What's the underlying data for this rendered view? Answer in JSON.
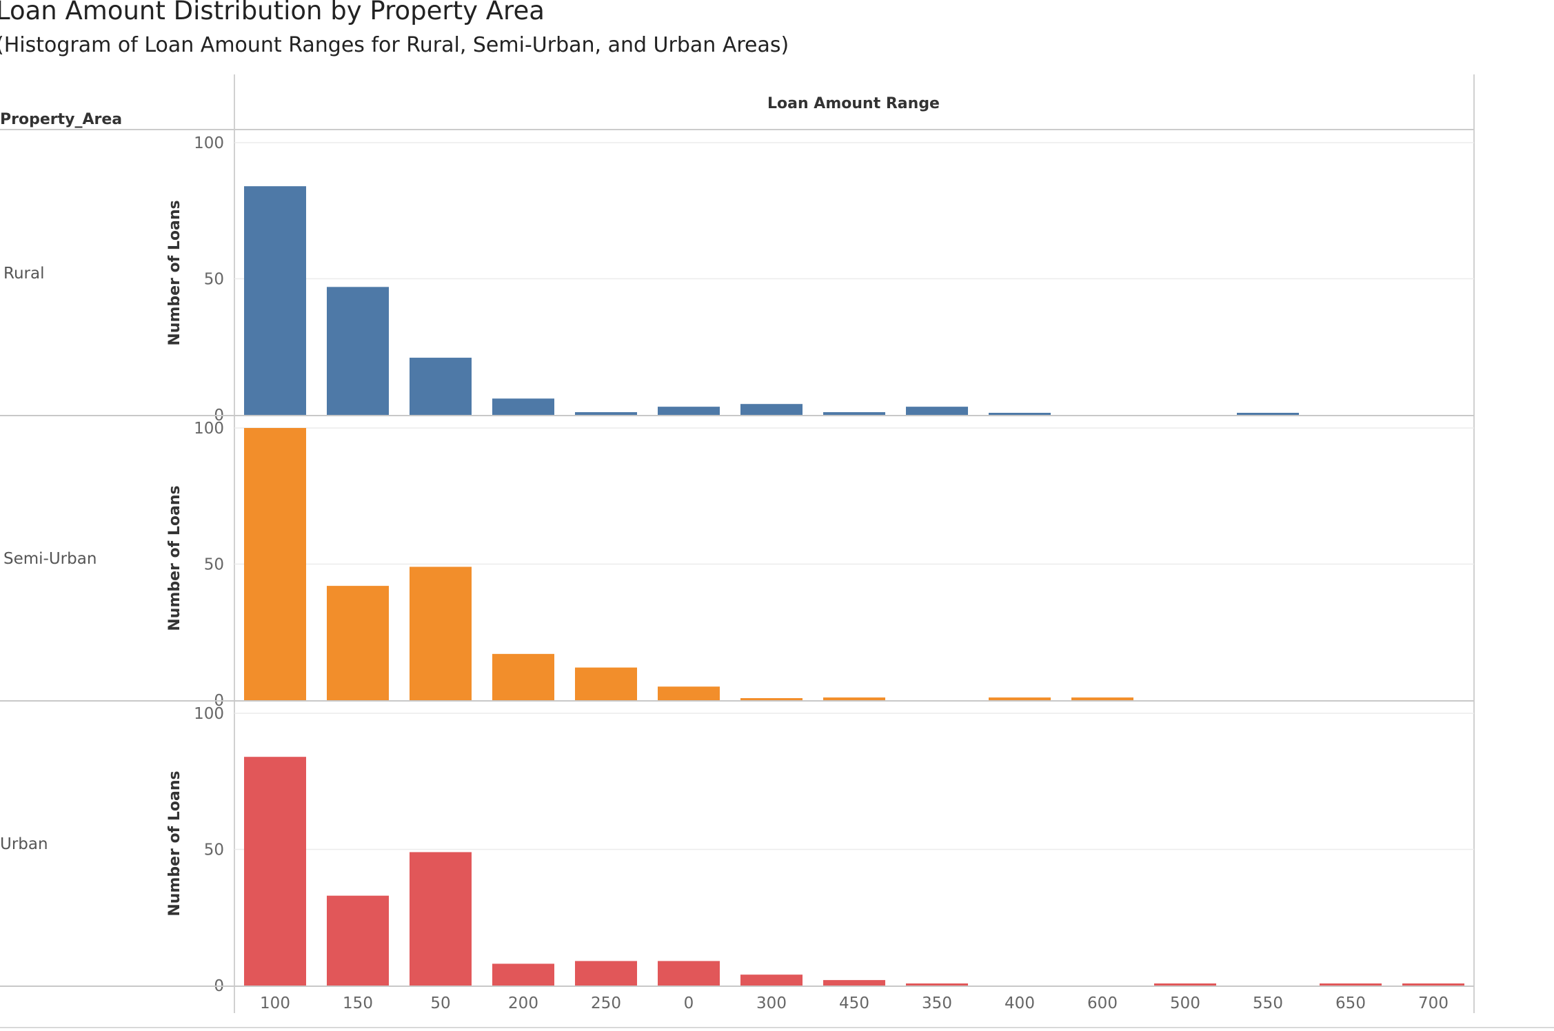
{
  "title": "Loan Amount Distribution by Property Area",
  "subtitle": "(Histogram of Loan Amount Ranges for Rural, Semi-Urban, and Urban Areas)",
  "row_header": "Property_Area",
  "column_header": "Loan Amount Range",
  "chart_data": {
    "type": "bar",
    "title": "Loan Amount Distribution by Property Area",
    "subtitle": "(Histogram of Loan Amount Ranges for Rural, Semi-Urban, and Urban Areas)",
    "xlabel": "Loan Amount Range",
    "ylabel": "Number of Loans",
    "ylim": [
      0,
      100
    ],
    "yticks": [
      0,
      50,
      100
    ],
    "grid": true,
    "categories": [
      "100",
      "150",
      "50",
      "200",
      "250",
      "0",
      "300",
      "450",
      "350",
      "400",
      "600",
      "500",
      "550",
      "650",
      "700"
    ],
    "series": [
      {
        "name": "Rural",
        "color": "#4e79a7",
        "values": [
          84,
          47,
          21,
          6,
          1,
          3,
          4,
          1,
          3,
          0.5,
          0,
          0,
          0.5,
          0,
          0
        ]
      },
      {
        "name": "Semi-Urban",
        "color": "#f28e2b",
        "values": [
          100,
          42,
          49,
          17,
          12,
          5,
          0.5,
          1,
          0,
          1,
          1,
          0,
          0,
          0,
          0
        ]
      },
      {
        "name": "Urban",
        "color": "#e15759",
        "values": [
          84,
          33,
          49,
          8,
          9,
          9,
          4,
          2,
          0.5,
          0,
          0,
          0.5,
          0,
          0.5,
          0.5
        ]
      }
    ]
  }
}
